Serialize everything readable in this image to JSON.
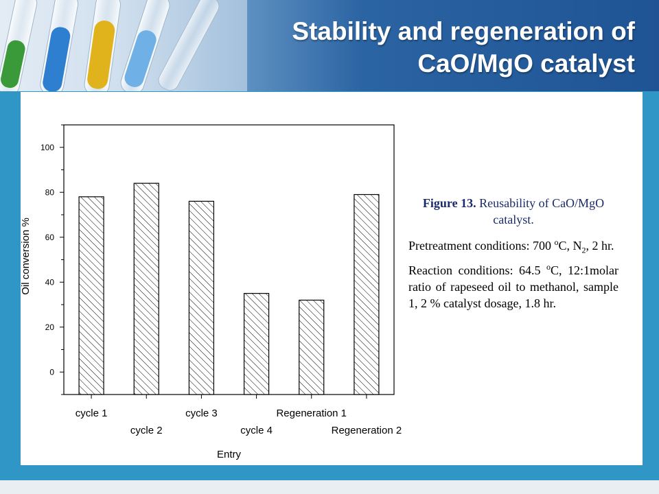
{
  "slide": {
    "title_line1": "Stability and regeneration of",
    "title_line2": "CaO/MgO catalyst"
  },
  "caption": {
    "figure_label": "Figure 13.",
    "figure_text": " Reusability of CaO/MgO catalyst.",
    "pre_a": "Pretreatment conditions: 700 ",
    "pre_sup": "o",
    "pre_b": "C, N",
    "pre_sub": "2",
    "pre_c": ", 2 hr.",
    "react_a": "Reaction conditions: 64.5 ",
    "react_sup": "o",
    "react_b": "C, 12:1molar ratio of rapeseed oil to methanol, sample 1, 2 % catalyst dosage, 1.8 hr."
  },
  "colors": {
    "frame": "#2f96c5",
    "header_dark": "#1f5494"
  },
  "chart_data": {
    "type": "bar",
    "categories": [
      "cycle 1",
      "cycle 2",
      "cycle 3",
      "cycle 4",
      "Regeneration 1",
      "Regeneration 2"
    ],
    "values": [
      78,
      84,
      76,
      35,
      32,
      79
    ],
    "xlabel": "Entry",
    "ylabel": "Oil conversion   %",
    "ylim": [
      -10,
      110
    ],
    "yticks": [
      0,
      20,
      40,
      60,
      80,
      100
    ],
    "grid": false,
    "bar_fill": "diagonal-hatch"
  }
}
